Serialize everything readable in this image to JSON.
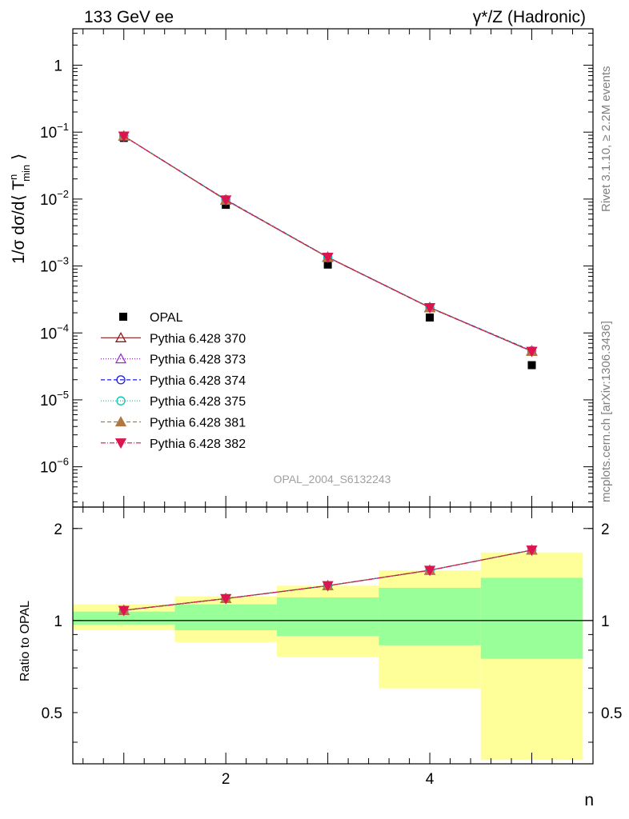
{
  "header": {
    "left": "133 GeV ee",
    "right": "γ*/Z (Hadronic)"
  },
  "side_text": {
    "rivet": "Rivet 3.1.10, ≥ 2.2M events",
    "mcplots": "mcplots.cern.ch [arXiv:1306.3436]"
  },
  "watermark": "OPAL_2004_S6132243",
  "chart_data": [
    {
      "type": "line",
      "panel": "main",
      "ylabel": "1/σ dσ/d⟨ Tⁿmin ⟩",
      "yscale": "log",
      "ylim": [
        2.5e-07,
        3.5
      ],
      "xlim": [
        0.5,
        5.6
      ],
      "grid": false,
      "legend_position": "center-left",
      "y_ticks": [
        {
          "value": 1e-06,
          "label": "10",
          "exp": "−6"
        },
        {
          "value": 1e-05,
          "label": "10",
          "exp": "−5"
        },
        {
          "value": 0.0001,
          "label": "10",
          "exp": "−4"
        },
        {
          "value": 0.001,
          "label": "10",
          "exp": "−3"
        },
        {
          "value": 0.01,
          "label": "10",
          "exp": "−2"
        },
        {
          "value": 0.1,
          "label": "10",
          "exp": "−1"
        },
        {
          "value": 1,
          "label": "1",
          "exp": ""
        }
      ],
      "x": [
        1,
        2,
        3,
        4,
        5
      ],
      "data": {
        "name": "OPAL",
        "values": [
          0.082,
          0.0082,
          0.00105,
          0.00017,
          3.3e-05
        ],
        "color": "#000000"
      },
      "series": [
        {
          "name": "Pythia 6.428 370",
          "values": [
            0.0875,
            0.0097,
            0.00135,
            0.00024,
            5.3e-05
          ],
          "color": "#8b1a1a",
          "dash": "",
          "marker": "triangle-open"
        },
        {
          "name": "Pythia 6.428 373",
          "values": [
            0.0876,
            0.0097,
            0.00136,
            0.00024,
            5.4e-05
          ],
          "color": "#9932cc",
          "dash": "1,2",
          "marker": "triangle-open"
        },
        {
          "name": "Pythia 6.428 374",
          "values": [
            0.0877,
            0.0098,
            0.00136,
            0.00024,
            5.4e-05
          ],
          "color": "#1c1cdc",
          "dash": "5,3",
          "marker": "circle-open"
        },
        {
          "name": "Pythia 6.428 375",
          "values": [
            0.0877,
            0.0098,
            0.00136,
            0.00024,
            5.4e-05
          ],
          "color": "#00c8b4",
          "dash": "1,2",
          "marker": "circle-open"
        },
        {
          "name": "Pythia 6.428 381",
          "values": [
            0.0873,
            0.0096,
            0.00134,
            0.000237,
            5.3e-05
          ],
          "color": "#b07840",
          "dash": "5,3",
          "marker": "triangle-filled"
        },
        {
          "name": "Pythia 6.428 382",
          "values": [
            0.0874,
            0.0097,
            0.00135,
            0.000239,
            5.3e-05
          ],
          "color": "#dc1450",
          "dash": "6,2,1,2",
          "marker": "triangle-down-filled"
        }
      ]
    },
    {
      "type": "line",
      "panel": "ratio",
      "xlabel": "n",
      "ylabel": "Ratio to OPAL",
      "yscale": "log",
      "ylim": [
        0.34,
        2.35
      ],
      "xlim": [
        0.5,
        5.6
      ],
      "y_ticks": [
        {
          "value": 0.5,
          "label": "0.5"
        },
        {
          "value": 1,
          "label": "1"
        },
        {
          "value": 2,
          "label": "2"
        }
      ],
      "x_ticks": [
        {
          "value": 2,
          "label": "2"
        },
        {
          "value": 4,
          "label": "4"
        }
      ],
      "x": [
        1,
        2,
        3,
        4,
        5
      ],
      "bands": {
        "bins": [
          [
            0.5,
            1.5
          ],
          [
            1.5,
            2.5
          ],
          [
            2.5,
            3.5
          ],
          [
            3.5,
            4.5
          ],
          [
            4.5,
            5.5
          ]
        ],
        "yellow": [
          [
            0.93,
            1.13
          ],
          [
            0.85,
            1.2
          ],
          [
            0.76,
            1.3
          ],
          [
            0.6,
            1.46
          ],
          [
            0.35,
            1.67
          ]
        ],
        "green": [
          [
            0.97,
            1.07
          ],
          [
            0.93,
            1.13
          ],
          [
            0.89,
            1.19
          ],
          [
            0.83,
            1.28
          ],
          [
            0.75,
            1.38
          ]
        ]
      },
      "series": [
        {
          "name": "Pythia 6.428 370",
          "values": [
            1.08,
            1.18,
            1.3,
            1.46,
            1.7
          ]
        },
        {
          "name": "Pythia 6.428 373",
          "values": [
            1.08,
            1.18,
            1.3,
            1.46,
            1.7
          ]
        },
        {
          "name": "Pythia 6.428 374",
          "values": [
            1.08,
            1.18,
            1.3,
            1.46,
            1.7
          ]
        },
        {
          "name": "Pythia 6.428 375",
          "values": [
            1.08,
            1.18,
            1.3,
            1.46,
            1.7
          ]
        },
        {
          "name": "Pythia 6.428 381",
          "values": [
            1.08,
            1.18,
            1.3,
            1.46,
            1.7
          ]
        },
        {
          "name": "Pythia 6.428 382",
          "values": [
            1.08,
            1.18,
            1.3,
            1.46,
            1.7
          ]
        }
      ]
    }
  ]
}
